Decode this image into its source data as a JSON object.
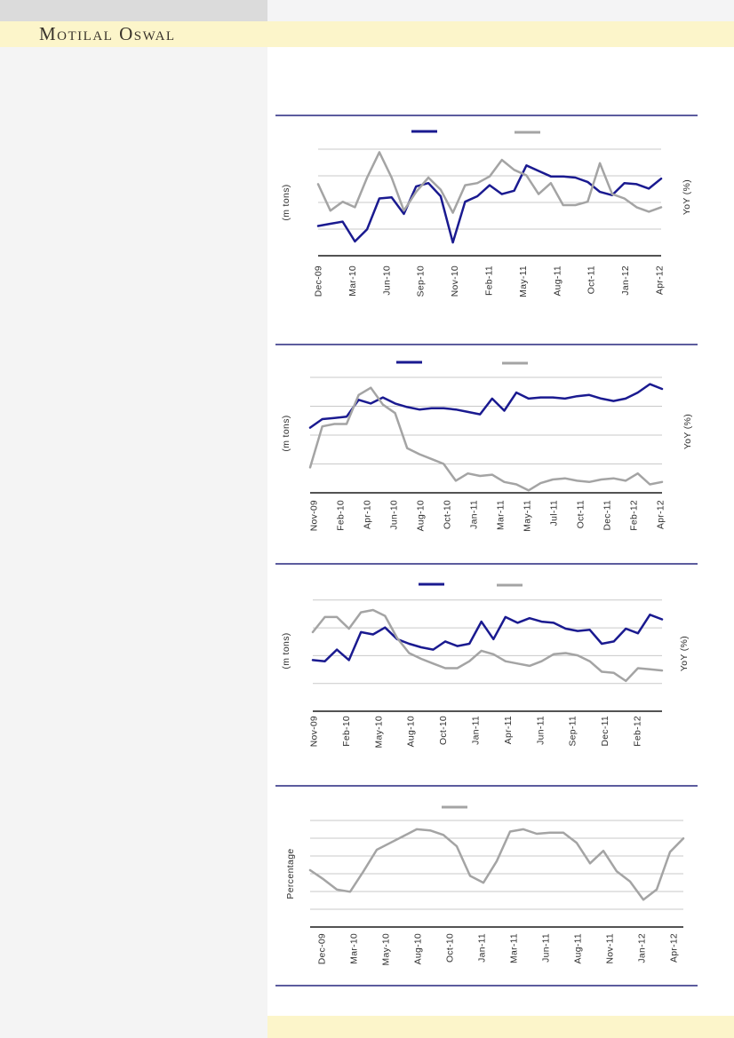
{
  "header": {
    "brand": "Motilal Oswal"
  },
  "page": {
    "colors": {
      "brand_band_yellow": "#FCF5CA",
      "footer_band_yellow": "#FCF5CA",
      "left_panel_gray": "#F4F4F4",
      "top_box_gray": "#DBDBDB",
      "section_rule_navy": "#26267F",
      "series_navy": "#1A1A90",
      "series_gray": "#A4A4A4",
      "gridline_gray": "#C9C9C9",
      "axis_black": "#1A1A1A",
      "tick_text": "#2E2E2E"
    }
  },
  "chart_data": [
    {
      "type": "line",
      "ylabel_left": "(m tons)",
      "ylabel_right": "YoY (%)",
      "x_labels": [
        "Dec-09",
        "Mar-10",
        "Jun-10",
        "Sep-10",
        "Nov-10",
        "Feb-11",
        "May-11",
        "Aug-11",
        "Oct-11",
        "Jan-12",
        "Apr-12"
      ],
      "y_tick_labels": [],
      "y_scale_note": "no numeric y-axis labels printed; values digitized as percent of plot height (0 = x-axis, 100 = plot top)",
      "gridlines": 4,
      "legend_position": "top",
      "legend": {
        "entries": [
          {
            "label": "",
            "color": "#1A1A90"
          },
          {
            "label": "",
            "color": "#A4A4A4"
          }
        ]
      },
      "series": [
        {
          "name": "navy-left-axis-series",
          "color": "#1A1A90",
          "axis": "left",
          "values": [
            27,
            29,
            31,
            13,
            24,
            52,
            53,
            38,
            63,
            66,
            54,
            12,
            49,
            54,
            64,
            56,
            59,
            82,
            77,
            72,
            72,
            71,
            67,
            58,
            55,
            66,
            65,
            61,
            70
          ]
        },
        {
          "name": "gray-right-axis-series",
          "color": "#A4A4A4",
          "axis": "right",
          "values": [
            65,
            41,
            49,
            44,
            71,
            94,
            71,
            41,
            58,
            71,
            60,
            39,
            64,
            66,
            72,
            87,
            78,
            73,
            56,
            66,
            46,
            46,
            49,
            84,
            56,
            52,
            44,
            40,
            44
          ]
        }
      ]
    },
    {
      "type": "line",
      "ylabel_left": "(m tons)",
      "ylabel_right": "YoY (%)",
      "x_labels": [
        "Nov-09",
        "Feb-10",
        "Apr-10",
        "Jun-10",
        "Aug-10",
        "Oct-10",
        "Jan-11",
        "Mar-11",
        "May-11",
        "Jul-11",
        "Oct-11",
        "Dec-11",
        "Feb-12",
        "Apr-12"
      ],
      "y_tick_labels": [],
      "y_scale_note": "no numeric y-axis labels printed; values digitized as percent of plot height (0 = x-axis, 100 = plot top)",
      "gridlines": 4,
      "legend_position": "top",
      "legend": {
        "entries": [
          {
            "label": "",
            "color": "#1A1A90"
          },
          {
            "label": "",
            "color": "#A4A4A4"
          }
        ]
      },
      "series": [
        {
          "name": "navy-left-axis-series",
          "color": "#1A1A90",
          "axis": "left",
          "values": [
            54,
            61,
            62,
            63,
            77,
            74,
            79,
            74,
            71,
            69,
            70,
            70,
            69,
            67,
            65,
            78,
            68,
            83,
            78,
            79,
            79,
            78,
            80,
            81,
            78,
            76,
            78,
            83,
            90,
            86
          ]
        },
        {
          "name": "gray-right-axis-series",
          "color": "#A4A4A4",
          "axis": "right",
          "values": [
            21,
            55,
            57,
            57,
            81,
            87,
            73,
            66,
            37,
            32,
            28,
            24,
            10,
            16,
            14,
            15,
            9,
            7,
            2,
            8,
            11,
            12,
            10,
            9,
            11,
            12,
            10,
            16,
            7,
            9
          ]
        }
      ]
    },
    {
      "type": "line",
      "ylabel_left": "(m tons)",
      "ylabel_right": "YoY (%)",
      "x_labels": [
        "Nov-09",
        "Feb-10",
        "May-10",
        "Aug-10",
        "Oct-10",
        "Jan-11",
        "Apr-11",
        "Jun-11",
        "Sep-11",
        "Dec-11",
        "Feb-12"
      ],
      "y_tick_labels": [],
      "y_scale_note": "no numeric y-axis labels printed; values digitized as percent of plot height (0 = x-axis, 100 = plot top)",
      "gridlines": 4,
      "legend_position": "top",
      "legend": {
        "entries": [
          {
            "label": "",
            "color": "#1A1A90"
          },
          {
            "label": "",
            "color": "#A4A4A4"
          }
        ]
      },
      "series": [
        {
          "name": "navy-left-axis-series",
          "color": "#1A1A90",
          "axis": "left",
          "values": [
            44,
            43,
            53,
            44,
            68,
            66,
            72,
            62,
            58,
            55,
            53,
            60,
            56,
            58,
            77,
            62,
            81,
            76,
            80,
            77,
            76,
            71,
            69,
            70,
            58,
            60,
            71,
            67,
            83,
            79
          ]
        },
        {
          "name": "gray-right-axis-series",
          "color": "#A4A4A4",
          "axis": "right",
          "values": [
            68,
            81,
            81,
            71,
            85,
            87,
            82,
            63,
            50,
            45,
            41,
            37,
            37,
            43,
            52,
            49,
            43,
            41,
            39,
            43,
            49,
            50,
            48,
            43,
            34,
            33,
            26,
            37,
            36,
            35
          ]
        }
      ]
    },
    {
      "type": "line",
      "ylabel_left": "Percentage",
      "ylabel_right": "",
      "x_labels": [
        "Dec-09",
        "Mar-10",
        "May-10",
        "Aug-10",
        "Oct-10",
        "Jan-11",
        "Mar-11",
        "Jun-11",
        "Aug-11",
        "Nov-11",
        "Jan-12",
        "Apr-12"
      ],
      "y_tick_labels": [],
      "y_scale_note": "no numeric y-axis labels printed; values digitized as percent of plot height (0 = x-axis, 100 = plot top)",
      "gridlines": 6,
      "legend_position": "top",
      "legend": {
        "entries": [
          {
            "label": "",
            "color": "#A4A4A4"
          }
        ]
      },
      "series": [
        {
          "name": "gray-series",
          "color": "#A4A4A4",
          "axis": "left",
          "values": [
            50,
            42,
            33,
            31,
            49,
            68,
            74,
            80,
            86,
            85,
            81,
            71,
            45,
            39,
            58,
            84,
            86,
            82,
            83,
            83,
            74,
            56,
            67,
            49,
            40,
            24,
            33,
            66,
            78
          ]
        }
      ]
    }
  ]
}
